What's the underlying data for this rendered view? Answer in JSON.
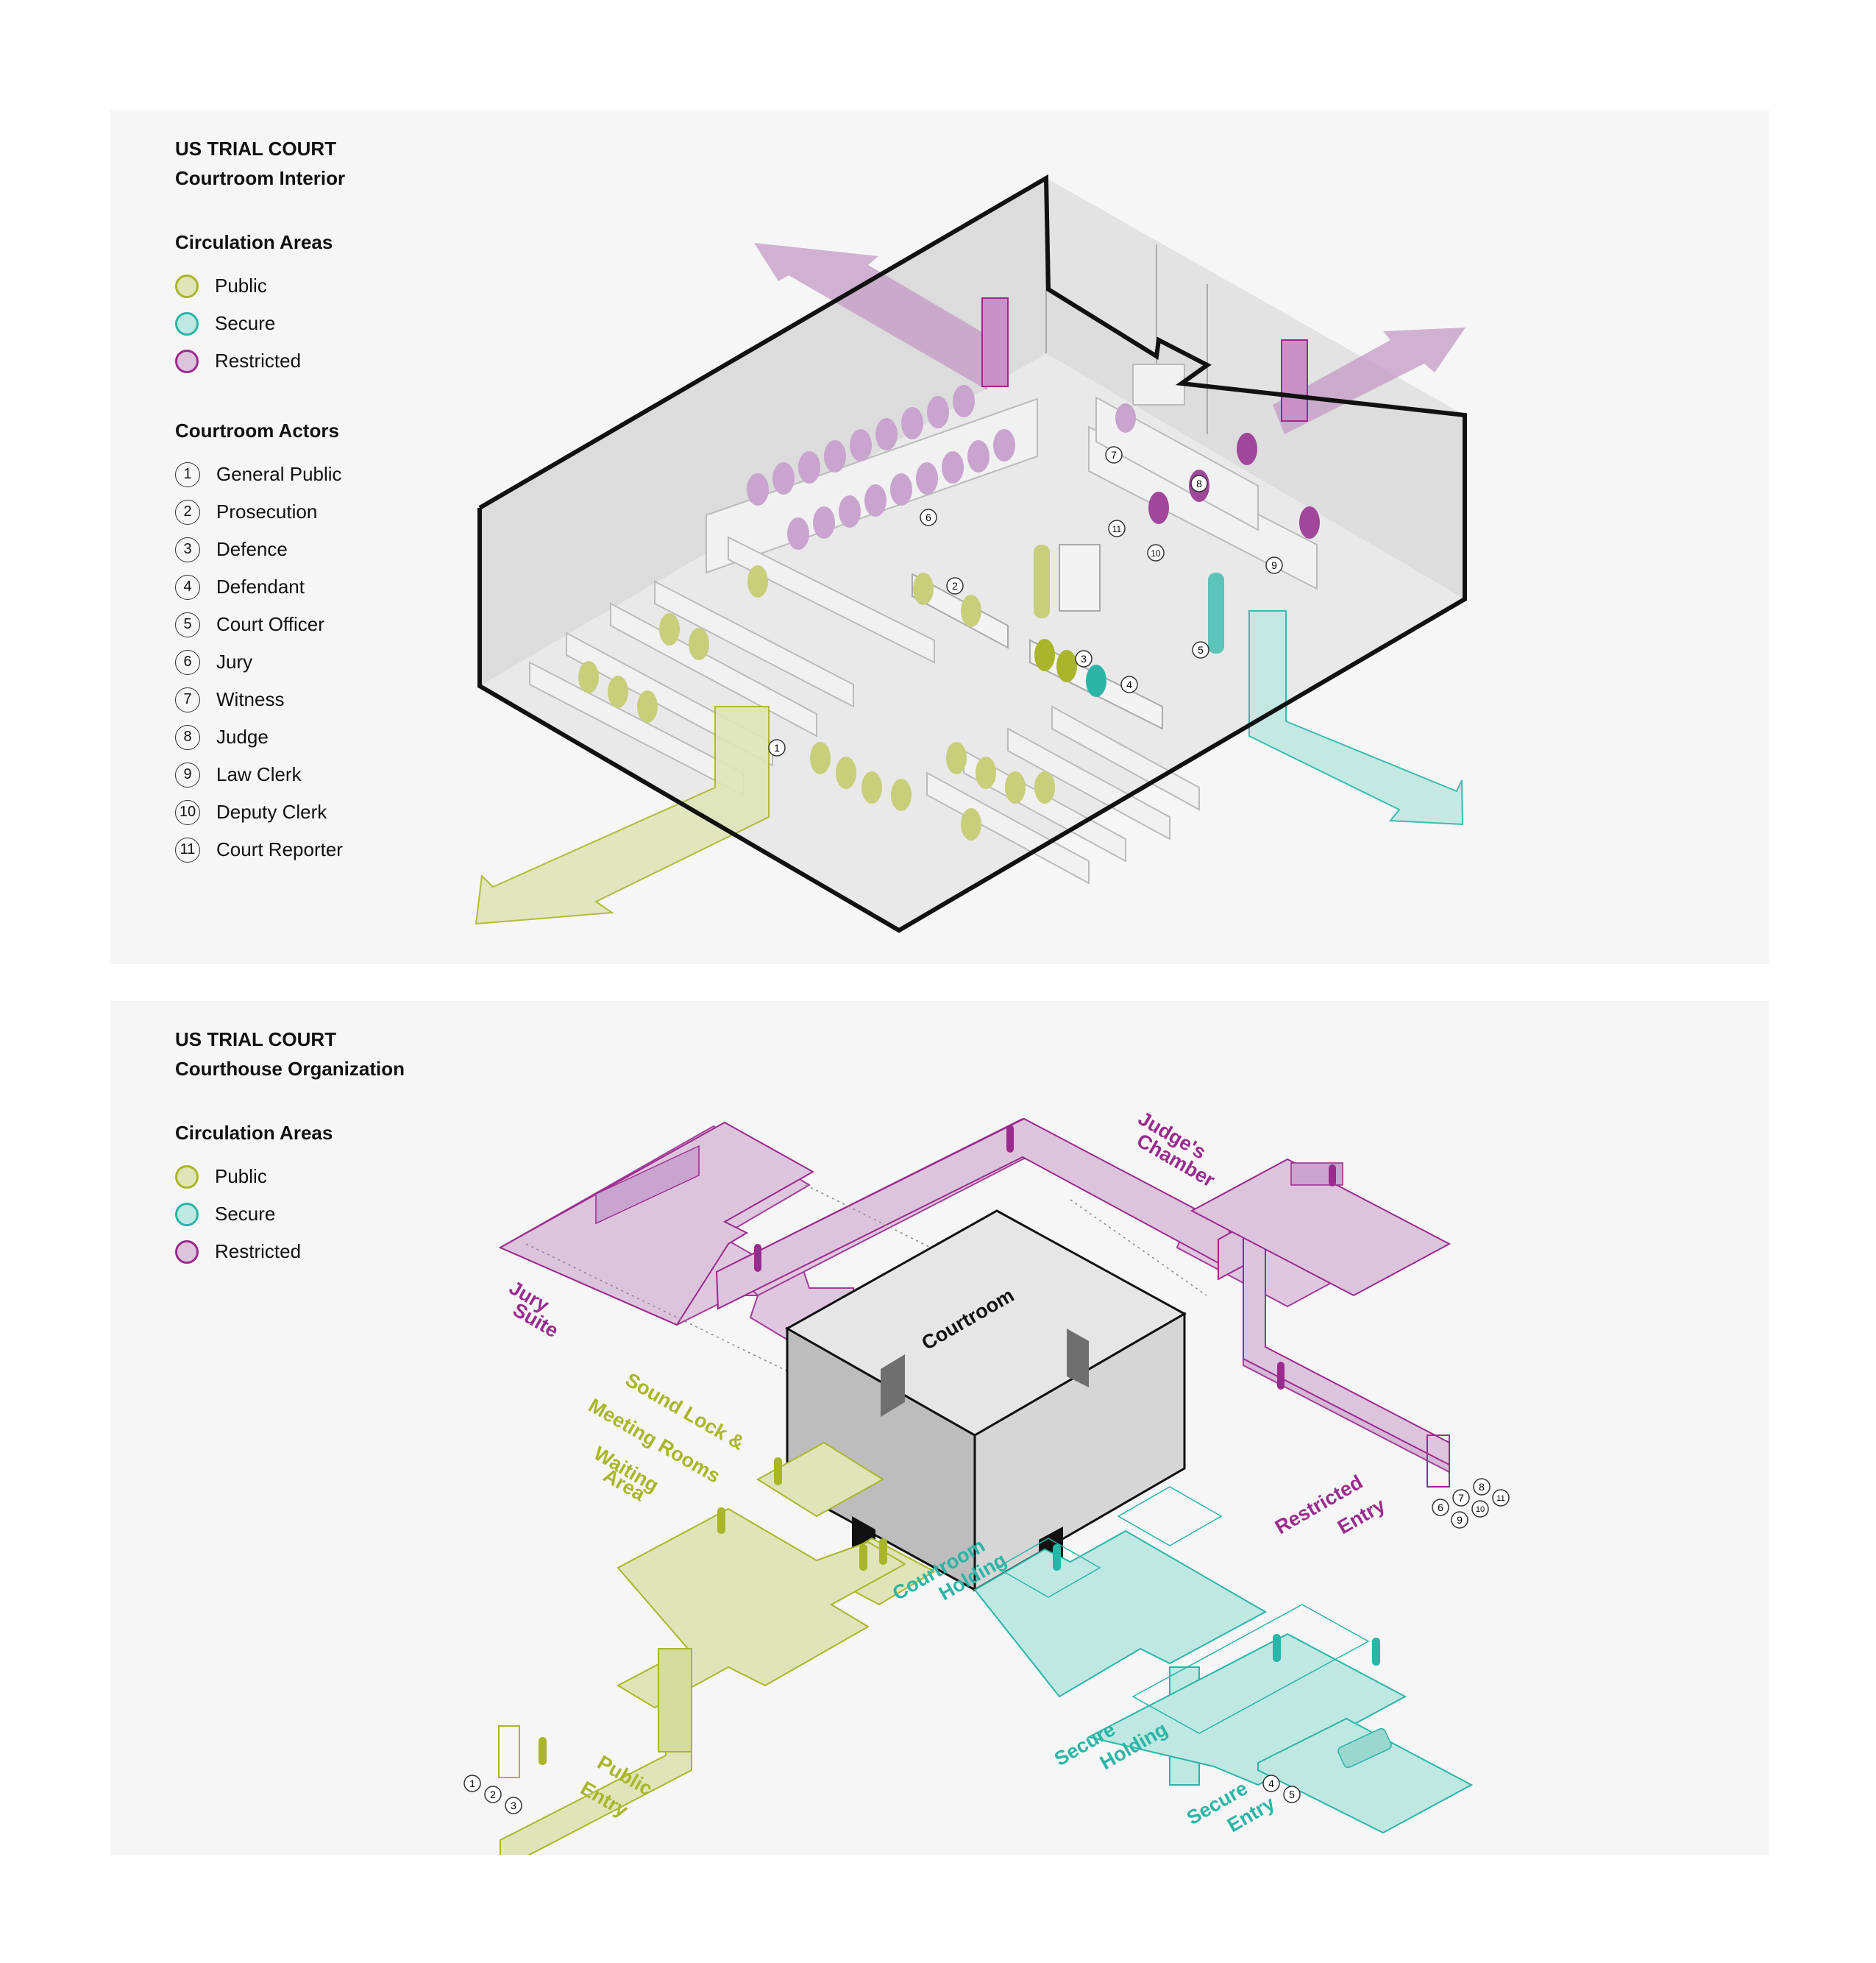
{
  "colors": {
    "public": "#a9b62a",
    "public_fill": "#dfe5b8",
    "secure": "#2ab5a7",
    "secure_fill": "#bfe8e2",
    "restricted": "#9b2a8f",
    "restricted_fill": "#ddc4dd"
  },
  "panel1": {
    "title": "US TRIAL COURT",
    "subtitle": "Courtroom Interior",
    "circulation_heading": "Circulation Areas",
    "circulation": [
      {
        "label": "Public",
        "color": "#a9b62a",
        "fill": "#dfe5b8"
      },
      {
        "label": "Secure",
        "color": "#2ab5a7",
        "fill": "#bfe8e2"
      },
      {
        "label": "Restricted",
        "color": "#9b2a8f",
        "fill": "#ddc4dd"
      }
    ],
    "actors_heading": "Courtroom Actors",
    "actors": [
      {
        "num": "1",
        "label": "General Public"
      },
      {
        "num": "2",
        "label": "Prosecution"
      },
      {
        "num": "3",
        "label": "Defence"
      },
      {
        "num": "4",
        "label": "Defendant"
      },
      {
        "num": "5",
        "label": "Court Officer"
      },
      {
        "num": "6",
        "label": "Jury"
      },
      {
        "num": "7",
        "label": "Witness"
      },
      {
        "num": "8",
        "label": "Judge"
      },
      {
        "num": "9",
        "label": "Law Clerk"
      },
      {
        "num": "10",
        "label": "Deputy Clerk"
      },
      {
        "num": "11",
        "label": "Court Reporter"
      }
    ],
    "diagram_markers": [
      "1",
      "2",
      "3",
      "4",
      "5",
      "6",
      "7",
      "8",
      "9",
      "10",
      "11"
    ]
  },
  "panel2": {
    "title": "US TRIAL COURT",
    "subtitle": "Courthouse Organization",
    "circulation_heading": "Circulation Areas",
    "circulation": [
      {
        "label": "Public",
        "color": "#a9b62a",
        "fill": "#dfe5b8"
      },
      {
        "label": "Secure",
        "color": "#2ab5a7",
        "fill": "#bfe8e2"
      },
      {
        "label": "Restricted",
        "color": "#9b2a8f",
        "fill": "#ddc4dd"
      }
    ],
    "zones": {
      "courtroom": "Courtroom",
      "jury_suite": [
        "Jury",
        "Suite"
      ],
      "judges_chamber": [
        "Judge's",
        "Chamber"
      ],
      "sound_lock": [
        "Sound Lock &",
        "Meeting Rooms"
      ],
      "waiting_area": [
        "Waiting",
        "Area"
      ],
      "courtroom_holding": [
        "Courtroom",
        "Holding"
      ],
      "restricted_entry": [
        "Restricted",
        "Entry"
      ],
      "secure_holding": [
        "Secure",
        "Holding"
      ],
      "secure_entry": [
        "Secure",
        "Entry"
      ],
      "public_entry": [
        "Public",
        "Entry"
      ]
    },
    "entry_markers": {
      "public": [
        "1",
        "2",
        "3"
      ],
      "secure": [
        "4",
        "5"
      ],
      "restricted": [
        "6",
        "7",
        "8",
        "9",
        "10",
        "11"
      ]
    }
  }
}
